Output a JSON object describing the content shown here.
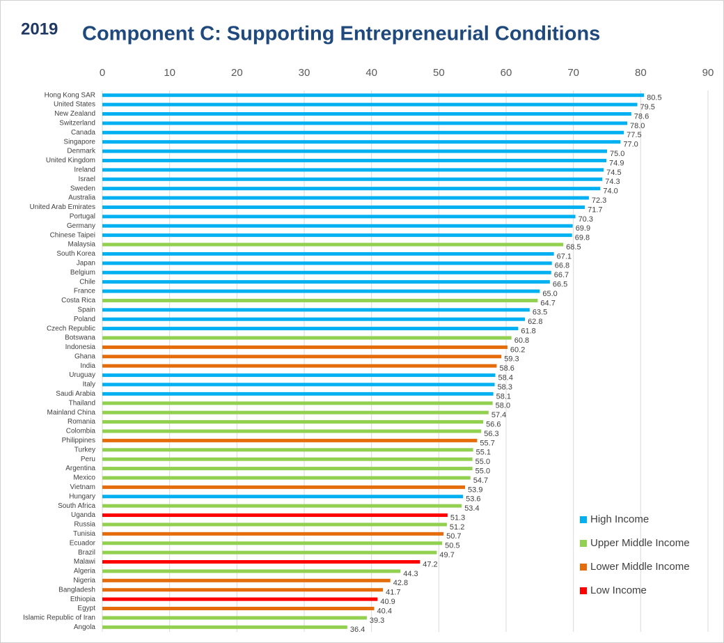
{
  "chart_data": {
    "type": "barh",
    "year": "2019",
    "title": "Component C: Supporting Entrepreneurial Conditions",
    "categories": [
      "Hong Kong SAR",
      "United States",
      "New Zealand",
      "Switzerland",
      "Canada",
      "Singapore",
      "Denmark",
      "United Kingdom",
      "Ireland",
      "Israel",
      "Sweden",
      "Australia",
      "United Arab Emirates",
      "Portugal",
      "Germany",
      "Chinese Taipei",
      "Malaysia",
      "South Korea",
      "Japan",
      "Belgium",
      "Chile",
      "France",
      "Costa Rica",
      "Spain",
      "Poland",
      "Czech Republic",
      "Botswana",
      "Indonesia",
      "Ghana",
      "India",
      "Uruguay",
      "Italy",
      "Saudi Arabia",
      "Thailand",
      "Mainland China",
      "Romania",
      "Colombia",
      "Philippines",
      "Turkey",
      "Peru",
      "Argentina",
      "Mexico",
      "Vietnam",
      "Hungary",
      "South Africa",
      "Uganda",
      "Russia",
      "Tunisia",
      "Ecuador",
      "Brazil",
      "Malawi",
      "Algeria",
      "Nigeria",
      "Bangladesh",
      "Ethiopia",
      "Egypt",
      "Islamic Republic of Iran",
      "Angola"
    ],
    "values": [
      80.5,
      79.5,
      78.6,
      78.0,
      77.5,
      77.0,
      75.0,
      74.9,
      74.5,
      74.3,
      74.0,
      72.3,
      71.7,
      70.3,
      69.9,
      69.8,
      68.5,
      67.1,
      66.8,
      66.7,
      66.5,
      65.0,
      64.7,
      63.5,
      62.8,
      61.8,
      60.8,
      60.2,
      59.3,
      58.6,
      58.4,
      58.3,
      58.1,
      58.0,
      57.4,
      56.6,
      56.3,
      55.7,
      55.1,
      55.0,
      55.0,
      54.7,
      53.9,
      53.6,
      53.4,
      51.3,
      51.2,
      50.7,
      50.5,
      49.7,
      47.2,
      44.3,
      42.8,
      41.7,
      40.9,
      40.4,
      39.3,
      36.4
    ],
    "value_labels": [
      "80.5",
      "79.5",
      "78.6",
      "78.0",
      "77.5",
      "77.0",
      "75.0",
      "74.9",
      "74.5",
      "74.3",
      "74.0",
      "72.3",
      "71.7",
      "70.3",
      "69.9",
      "69.8",
      "68.5",
      "67.1",
      "66.8",
      "66.7",
      "66.5",
      "65.0",
      "64.7",
      "63.5",
      "62.8",
      "61.8",
      "60.8",
      "60.2",
      "59.3",
      "58.6",
      "58.4",
      "58.3",
      "58.1",
      "58.0",
      "57.4",
      "56.6",
      "56.3",
      "55.7",
      "55.1",
      "55.0",
      "55.0",
      "54.7",
      "53.9",
      "53.6",
      "53.4",
      "51.3",
      "51.2",
      "50.7",
      "50.5",
      "49.7",
      "47.2",
      "44.3",
      "42.8",
      "41.7",
      "40.9",
      "40.4",
      "39.3",
      "36.4"
    ],
    "groups": [
      "High Income",
      "High Income",
      "High Income",
      "High Income",
      "High Income",
      "High Income",
      "High Income",
      "High Income",
      "High Income",
      "High Income",
      "High Income",
      "High Income",
      "High Income",
      "High Income",
      "High Income",
      "High Income",
      "Upper Middle Income",
      "High Income",
      "High Income",
      "High Income",
      "High Income",
      "High Income",
      "Upper Middle Income",
      "High Income",
      "High Income",
      "High Income",
      "Upper Middle Income",
      "Lower Middle Income",
      "Lower Middle Income",
      "Lower Middle Income",
      "High Income",
      "High Income",
      "High Income",
      "Upper Middle Income",
      "Upper Middle Income",
      "Upper Middle Income",
      "Upper Middle Income",
      "Lower Middle Income",
      "Upper Middle Income",
      "Upper Middle Income",
      "Upper Middle Income",
      "Upper Middle Income",
      "Lower Middle Income",
      "High Income",
      "Upper Middle Income",
      "Low Income",
      "Upper Middle Income",
      "Lower Middle Income",
      "Upper Middle Income",
      "Upper Middle Income",
      "Low Income",
      "Upper Middle Income",
      "Lower Middle Income",
      "Lower Middle Income",
      "Low Income",
      "Lower Middle Income",
      "Upper Middle Income",
      "Upper Middle Income"
    ],
    "legend": [
      {
        "name": "High Income",
        "color": "#00b0f0"
      },
      {
        "name": "Upper Middle Income",
        "color": "#92d050"
      },
      {
        "name": "Lower Middle Income",
        "color": "#e46c0a"
      },
      {
        "name": "Low Income",
        "color": "#ff0000"
      }
    ],
    "xlim": [
      0,
      90
    ],
    "xticks": [
      0,
      10,
      20,
      30,
      40,
      50,
      60,
      70,
      80,
      90
    ],
    "grid": true
  }
}
